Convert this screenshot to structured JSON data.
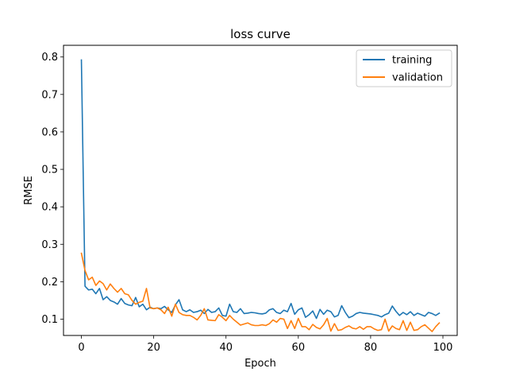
{
  "chart_data": {
    "type": "line",
    "title": "loss curve",
    "xlabel": "Epoch",
    "ylabel": "RMSE",
    "xlim": [
      -4.95,
      103.95
    ],
    "ylim": [
      0.0565,
      0.8312
    ],
    "xticks": [
      0,
      20,
      40,
      60,
      80,
      100
    ],
    "yticks": [
      0.1,
      0.2,
      0.3,
      0.4,
      0.5,
      0.6,
      0.7,
      0.8
    ],
    "ytick_labels": [
      "0.1",
      "0.2",
      "0.3",
      "0.4",
      "0.5",
      "0.6",
      "0.7",
      "0.8"
    ],
    "legend_position": "top-right",
    "grid": false,
    "x": [
      0,
      1,
      2,
      3,
      4,
      5,
      6,
      7,
      8,
      9,
      10,
      11,
      12,
      13,
      14,
      15,
      16,
      17,
      18,
      19,
      20,
      21,
      22,
      23,
      24,
      25,
      26,
      27,
      28,
      29,
      30,
      31,
      32,
      33,
      34,
      35,
      36,
      37,
      38,
      39,
      40,
      41,
      42,
      43,
      44,
      45,
      46,
      47,
      48,
      49,
      50,
      51,
      52,
      53,
      54,
      55,
      56,
      57,
      58,
      59,
      60,
      61,
      62,
      63,
      64,
      65,
      66,
      67,
      68,
      69,
      70,
      71,
      72,
      73,
      74,
      75,
      76,
      77,
      78,
      79,
      80,
      81,
      82,
      83,
      84,
      85,
      86,
      87,
      88,
      89,
      90,
      91,
      92,
      93,
      94,
      95,
      96,
      97,
      98,
      99
    ],
    "series": [
      {
        "name": "training",
        "color": "#1f77b4",
        "values": [
          0.792,
          0.188,
          0.178,
          0.18,
          0.168,
          0.182,
          0.152,
          0.16,
          0.15,
          0.146,
          0.14,
          0.155,
          0.142,
          0.138,
          0.136,
          0.158,
          0.133,
          0.14,
          0.125,
          0.132,
          0.128,
          0.13,
          0.128,
          0.134,
          0.125,
          0.118,
          0.138,
          0.152,
          0.125,
          0.12,
          0.125,
          0.118,
          0.12,
          0.124,
          0.115,
          0.126,
          0.118,
          0.12,
          0.13,
          0.11,
          0.108,
          0.14,
          0.12,
          0.118,
          0.128,
          0.115,
          0.116,
          0.118,
          0.117,
          0.115,
          0.114,
          0.116,
          0.125,
          0.128,
          0.118,
          0.115,
          0.124,
          0.12,
          0.142,
          0.113,
          0.125,
          0.13,
          0.105,
          0.112,
          0.122,
          0.102,
          0.126,
          0.113,
          0.124,
          0.12,
          0.106,
          0.11,
          0.136,
          0.118,
          0.104,
          0.108,
          0.115,
          0.118,
          0.116,
          0.115,
          0.114,
          0.112,
          0.11,
          0.106,
          0.112,
          0.116,
          0.135,
          0.121,
          0.11,
          0.118,
          0.112,
          0.12,
          0.11,
          0.116,
          0.112,
          0.108,
          0.118,
          0.115,
          0.11,
          0.116
        ]
      },
      {
        "name": "validation",
        "color": "#ff7f0e",
        "values": [
          0.276,
          0.23,
          0.205,
          0.212,
          0.19,
          0.202,
          0.195,
          0.178,
          0.194,
          0.182,
          0.172,
          0.182,
          0.168,
          0.165,
          0.15,
          0.14,
          0.145,
          0.148,
          0.182,
          0.13,
          0.128,
          0.13,
          0.125,
          0.115,
          0.132,
          0.108,
          0.14,
          0.118,
          0.112,
          0.11,
          0.11,
          0.105,
          0.098,
          0.11,
          0.128,
          0.098,
          0.097,
          0.096,
          0.112,
          0.105,
          0.096,
          0.11,
          0.1,
          0.092,
          0.084,
          0.087,
          0.09,
          0.085,
          0.083,
          0.083,
          0.085,
          0.083,
          0.088,
          0.098,
          0.092,
          0.102,
          0.1,
          0.075,
          0.096,
          0.075,
          0.102,
          0.08,
          0.08,
          0.072,
          0.086,
          0.078,
          0.074,
          0.085,
          0.102,
          0.068,
          0.088,
          0.07,
          0.072,
          0.078,
          0.082,
          0.076,
          0.074,
          0.08,
          0.073,
          0.08,
          0.08,
          0.074,
          0.07,
          0.072,
          0.1,
          0.068,
          0.082,
          0.075,
          0.072,
          0.096,
          0.07,
          0.092,
          0.07,
          0.072,
          0.08,
          0.085,
          0.076,
          0.067,
          0.08,
          0.09
        ]
      }
    ]
  }
}
